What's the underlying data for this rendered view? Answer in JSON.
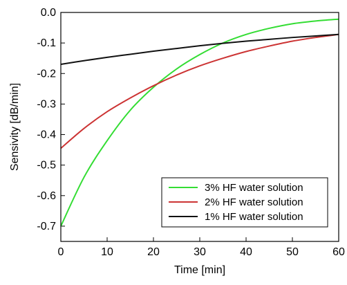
{
  "chart_data": {
    "type": "line",
    "title": "",
    "xlabel": "Time [min]",
    "ylabel": "Sensivity [dB/min]",
    "xlim": [
      0,
      60
    ],
    "ylim": [
      -0.75,
      0.0
    ],
    "xticks": [
      0,
      10,
      20,
      30,
      40,
      50,
      60
    ],
    "yticks": [
      0.0,
      -0.1,
      -0.2,
      -0.3,
      -0.4,
      -0.5,
      -0.6,
      -0.7
    ],
    "xtick_labels": [
      "0",
      "10",
      "20",
      "30",
      "40",
      "50",
      "60"
    ],
    "ytick_labels": [
      "0.0",
      "-0.1",
      "-0.2",
      "-0.3",
      "-0.4",
      "-0.5",
      "-0.6",
      "-0.7"
    ],
    "grid": false,
    "legend_position": "bottom-right",
    "series": [
      {
        "name": "3% HF water solution",
        "color": "#33dd33",
        "x": [
          0,
          5,
          10,
          15,
          20,
          25,
          30,
          35,
          40,
          45,
          50,
          55,
          60
        ],
        "y": [
          -0.7,
          -0.54,
          -0.42,
          -0.32,
          -0.245,
          -0.185,
          -0.138,
          -0.1,
          -0.072,
          -0.052,
          -0.037,
          -0.028,
          -0.022
        ]
      },
      {
        "name": "2% HF water solution",
        "color": "#cc3333",
        "x": [
          0,
          5,
          10,
          15,
          20,
          25,
          30,
          35,
          40,
          45,
          50,
          55,
          60
        ],
        "y": [
          -0.445,
          -0.38,
          -0.325,
          -0.28,
          -0.24,
          -0.205,
          -0.175,
          -0.15,
          -0.128,
          -0.11,
          -0.094,
          -0.082,
          -0.072
        ]
      },
      {
        "name": "1% HF water solution",
        "color": "#111111",
        "x": [
          0,
          5,
          10,
          15,
          20,
          25,
          30,
          35,
          40,
          45,
          50,
          55,
          60
        ],
        "y": [
          -0.17,
          -0.158,
          -0.147,
          -0.137,
          -0.127,
          -0.118,
          -0.109,
          -0.101,
          -0.094,
          -0.088,
          -0.082,
          -0.077,
          -0.072
        ]
      }
    ]
  }
}
